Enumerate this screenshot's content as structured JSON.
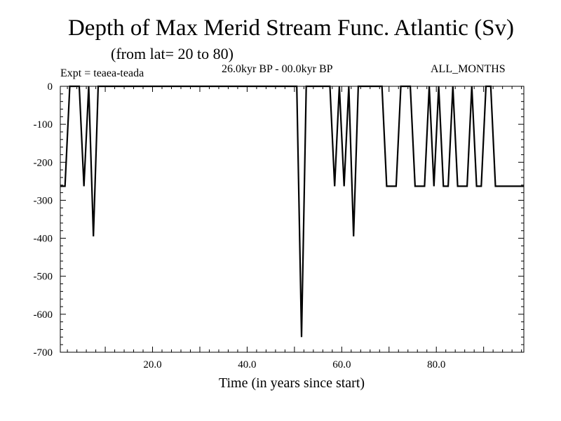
{
  "header": {
    "title": "Depth of Max Merid Stream Func. Atlantic (Sv)",
    "subtitle": "(from lat= 20 to 80)",
    "expt": "Expt = teaea-teada",
    "period": "26.0kyr BP - 00.0kyr BP",
    "months": "ALL_MONTHS"
  },
  "chart_data": {
    "type": "line",
    "title": "Depth of Max Merid Stream Func. Atlantic (Sv)",
    "xlabel": "Time (in years since start)",
    "ylabel": "",
    "xlim": [
      0.5,
      98.5
    ],
    "ylim": [
      -700,
      0
    ],
    "xticks": [
      20,
      40,
      60,
      80
    ],
    "xtick_labels": [
      "20.0",
      "40.0",
      "60.0",
      "80.0"
    ],
    "yticks": [
      0,
      -100,
      -200,
      -300,
      -400,
      -500,
      -600,
      -700
    ],
    "ytick_labels": [
      "0",
      "-100",
      "-200",
      "-300",
      "-400",
      "-500",
      "-600",
      "-700"
    ],
    "grid": false,
    "series": [
      {
        "color": "#000000",
        "x": [
          0.5,
          1.5,
          2.5,
          3.5,
          4.5,
          5.5,
          6.5,
          7.5,
          8.5,
          9.5,
          10.5,
          11.5,
          12.5,
          13.5,
          14.5,
          15.5,
          16.5,
          17.5,
          18.5,
          19.5,
          20.5,
          21.5,
          22.5,
          23.5,
          24.5,
          25.5,
          26.5,
          27.5,
          28.5,
          29.5,
          30.5,
          31.5,
          32.5,
          33.5,
          34.5,
          35.5,
          36.5,
          37.5,
          38.5,
          39.5,
          40.5,
          41.5,
          42.5,
          43.5,
          44.5,
          45.5,
          46.5,
          47.5,
          48.5,
          49.5,
          50.5,
          51.5,
          52.5,
          53.5,
          54.5,
          55.5,
          56.5,
          57.5,
          58.5,
          59.5,
          60.5,
          61.5,
          62.5,
          63.5,
          64.5,
          65.5,
          66.5,
          67.5,
          68.5,
          69.5,
          70.5,
          71.5,
          72.5,
          73.5,
          74.5,
          75.5,
          76.5,
          77.5,
          78.5,
          79.5,
          80.5,
          81.5,
          82.5,
          83.5,
          84.5,
          85.5,
          86.5,
          87.5,
          88.5,
          89.5,
          90.5,
          91.5,
          92.5,
          93.5,
          94.5,
          95.5,
          96.5,
          97.5,
          98.5
        ],
        "values": [
          -263,
          -263,
          0,
          0,
          0,
          -263,
          0,
          -395,
          0,
          0,
          0,
          0,
          0,
          0,
          0,
          0,
          0,
          0,
          0,
          0,
          0,
          0,
          0,
          0,
          0,
          0,
          0,
          0,
          0,
          0,
          0,
          0,
          0,
          0,
          0,
          0,
          0,
          0,
          0,
          0,
          0,
          0,
          0,
          0,
          0,
          0,
          0,
          0,
          0,
          0,
          0,
          -660,
          0,
          0,
          0,
          0,
          0,
          0,
          -263,
          0,
          -263,
          0,
          -395,
          0,
          0,
          0,
          0,
          0,
          0,
          -263,
          -263,
          -263,
          0,
          0,
          0,
          -263,
          -263,
          -263,
          0,
          -263,
          0,
          -263,
          -263,
          0,
          -263,
          -263,
          -263,
          0,
          -263,
          -263,
          0,
          0,
          -263,
          -263,
          -263,
          -263,
          -263,
          -263,
          -263
        ]
      }
    ]
  }
}
